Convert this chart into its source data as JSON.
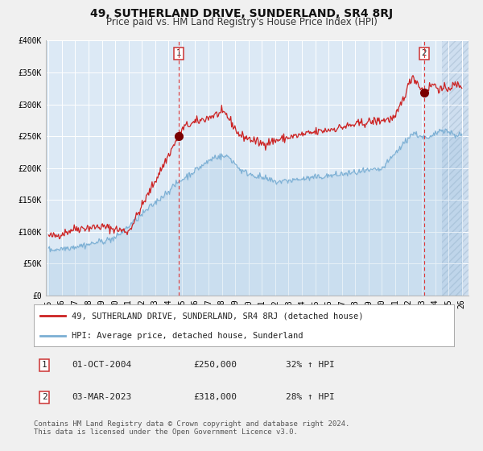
{
  "title": "49, SUTHERLAND DRIVE, SUNDERLAND, SR4 8RJ",
  "subtitle": "Price paid vs. HM Land Registry's House Price Index (HPI)",
  "ylim": [
    0,
    400000
  ],
  "xlim_start": 1994.8,
  "xlim_end": 2026.5,
  "yticks": [
    0,
    50000,
    100000,
    150000,
    200000,
    250000,
    300000,
    350000,
    400000
  ],
  "ytick_labels": [
    "£0",
    "£50K",
    "£100K",
    "£150K",
    "£200K",
    "£250K",
    "£300K",
    "£350K",
    "£400K"
  ],
  "xticks": [
    1995,
    1996,
    1997,
    1998,
    1999,
    2000,
    2001,
    2002,
    2003,
    2004,
    2005,
    2006,
    2007,
    2008,
    2009,
    2010,
    2011,
    2012,
    2013,
    2014,
    2015,
    2016,
    2017,
    2018,
    2019,
    2020,
    2021,
    2022,
    2023,
    2024,
    2025,
    2026
  ],
  "background_color": "#dce9f5",
  "grid_color": "#ffffff",
  "red_line_color": "#cc2222",
  "blue_line_color": "#7bafd4",
  "marker1_x": 2004.75,
  "marker1_y": 250000,
  "marker2_x": 2023.17,
  "marker2_y": 318000,
  "vline1_x": 2004.75,
  "vline2_x": 2023.17,
  "legend_label_red": "49, SUTHERLAND DRIVE, SUNDERLAND, SR4 8RJ (detached house)",
  "legend_label_blue": "HPI: Average price, detached house, Sunderland",
  "annotation1_date": "01-OCT-2004",
  "annotation1_price": "£250,000",
  "annotation1_hpi": "32% ↑ HPI",
  "annotation2_date": "03-MAR-2023",
  "annotation2_price": "£318,000",
  "annotation2_hpi": "28% ↑ HPI",
  "footer": "Contains HM Land Registry data © Crown copyright and database right 2024.\nThis data is licensed under the Open Government Licence v3.0.",
  "title_fontsize": 10,
  "subtitle_fontsize": 8.5,
  "tick_fontsize": 7,
  "legend_fontsize": 7.5,
  "annotation_fontsize": 8,
  "footer_fontsize": 6.5,
  "fig_bg": "#f0f0f0"
}
